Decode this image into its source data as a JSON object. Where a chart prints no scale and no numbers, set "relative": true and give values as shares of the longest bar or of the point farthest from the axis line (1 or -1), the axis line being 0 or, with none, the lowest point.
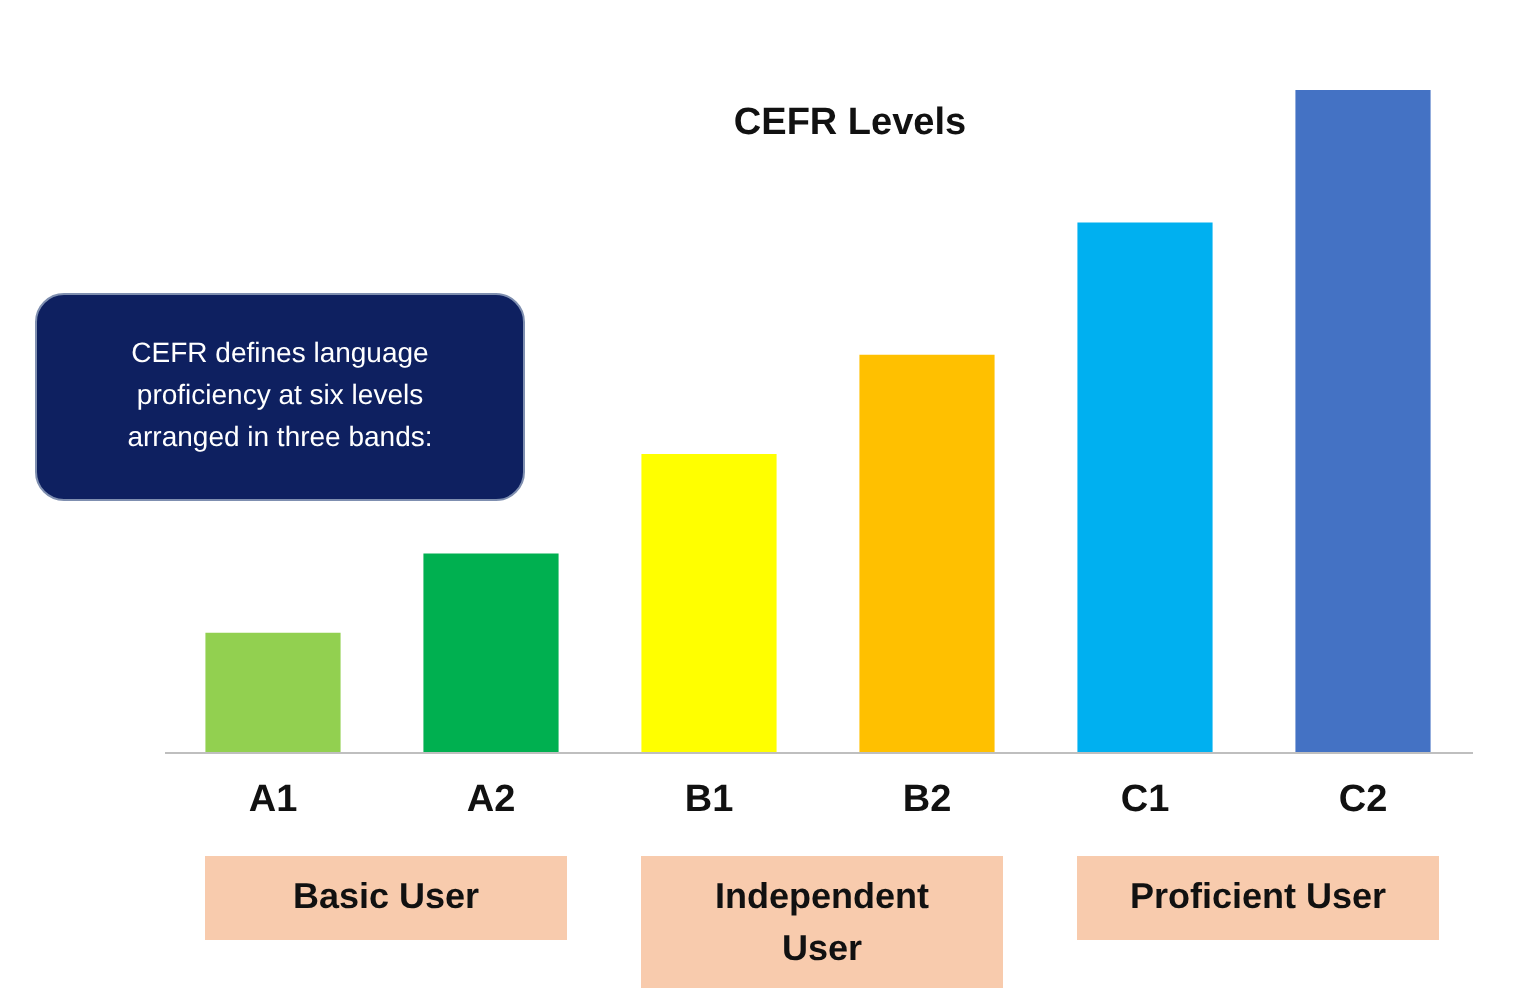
{
  "chart_data": {
    "type": "bar",
    "title": "CEFR Levels",
    "relative": true,
    "categories": [
      "A1",
      "A2",
      "B1",
      "B2",
      "C1",
      "C2"
    ],
    "values": [
      0.18,
      0.3,
      0.45,
      0.6,
      0.8,
      1
    ],
    "colors": [
      "#92d050",
      "#00b050",
      "#ffff00",
      "#ffc000",
      "#00b0f0",
      "#4472c4"
    ],
    "annotations": [
      "CEFR defines language proficiency at six levels arranged in three bands:",
      "Basic User",
      "Independent User",
      "Proficient User"
    ]
  }
}
